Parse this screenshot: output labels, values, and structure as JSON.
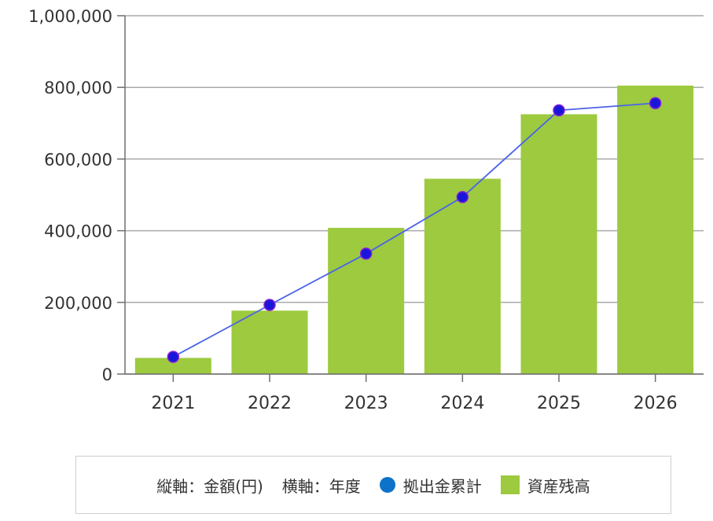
{
  "chart_data": {
    "type": "bar",
    "categories": [
      "2021",
      "2022",
      "2023",
      "2024",
      "2025",
      "2026"
    ],
    "y_ticks": [
      "0",
      "200,000",
      "400,000",
      "600,000",
      "800,000",
      "1,000,000"
    ],
    "ylim": [
      0,
      1000000
    ],
    "grid": true,
    "series": [
      {
        "name": "資産残高",
        "type": "bar",
        "values": [
          45000,
          177000,
          408000,
          545000,
          725000,
          805000
        ]
      },
      {
        "name": "拠出金累計",
        "type": "line",
        "values": [
          48000,
          193000,
          336000,
          494000,
          736000,
          756000
        ]
      }
    ]
  },
  "legend": {
    "vertical_axis": "縦軸：金額(円)",
    "horizontal_axis": "横軸：年度",
    "line_series": "拠出金累計",
    "bar_series": "資産残高"
  },
  "colors": {
    "bar": "#9dca3f",
    "line": "#4a63e8",
    "marker": "#1a16d9",
    "marker_stroke": "#8a1fd6",
    "grid": "#a9a9a9",
    "axis": "#6e6e6e",
    "legend_dot": "#0d72c9",
    "legend_square": "#9dca3f"
  }
}
